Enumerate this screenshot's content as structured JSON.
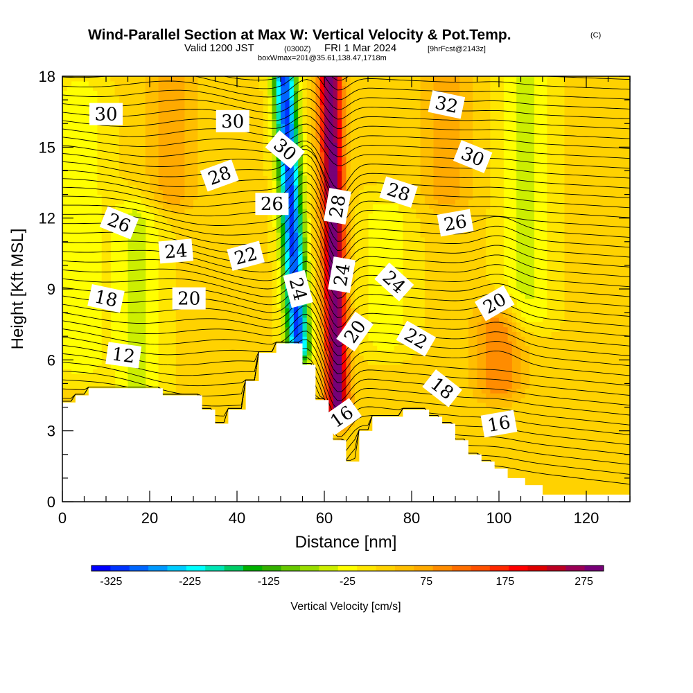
{
  "title": {
    "main": "Wind-Parallel Section at Max W: Vertical Velocity & Pot.Temp.",
    "copyright": "(C)",
    "valid_prefix": "Valid 1200 JST",
    "valid_utc": "(0300Z)",
    "valid_date": "FRI 1 Mar 2024",
    "forecast": "[9hrFcst@2143z]",
    "boxwmax": "boxWmax=201@35.61,138.47,1718m"
  },
  "chart_data": {
    "type": "heatmap",
    "xlabel": "Distance [nm]",
    "ylabel": "Height [Kft MSL]",
    "xlim": [
      0,
      130
    ],
    "ylim": [
      0,
      18
    ],
    "x_ticks": [
      "0",
      "20",
      "40",
      "60",
      "80",
      "100",
      "120"
    ],
    "y_ticks": [
      "0",
      "3",
      "6",
      "9",
      "12",
      "15",
      "18"
    ],
    "field": "Vertical Velocity",
    "colorbar": {
      "label": "Vertical Velocity [cm/s]",
      "ticks": [
        "-325",
        "-225",
        "-125",
        "-25",
        "75",
        "175",
        "275"
      ],
      "min": -350,
      "max": 300,
      "colors": [
        "#0000ff",
        "#0033ff",
        "#0066ff",
        "#0099ff",
        "#00ccff",
        "#00ffff",
        "#00e5b4",
        "#00cc66",
        "#00b000",
        "#33b000",
        "#66c800",
        "#99dd00",
        "#ccee00",
        "#ffff00",
        "#ffe600",
        "#ffd200",
        "#ffbe00",
        "#ffaa00",
        "#ff8c00",
        "#ff6e00",
        "#ff5000",
        "#ff2800",
        "#ff0000",
        "#dd0000",
        "#bb0022",
        "#990055",
        "#770077"
      ]
    },
    "terrain": [
      [
        0,
        4.2
      ],
      [
        3,
        4.2
      ],
      [
        3,
        4.5
      ],
      [
        6,
        4.5
      ],
      [
        6,
        4.8
      ],
      [
        23,
        4.8
      ],
      [
        23,
        4.5
      ],
      [
        32,
        4.5
      ],
      [
        32,
        3.9
      ],
      [
        35,
        3.9
      ],
      [
        35,
        3.3
      ],
      [
        38,
        3.3
      ],
      [
        38,
        3.9
      ],
      [
        42,
        3.9
      ],
      [
        42,
        5.1
      ],
      [
        45,
        5.1
      ],
      [
        45,
        6.3
      ],
      [
        49,
        6.3
      ],
      [
        49,
        6.7
      ],
      [
        55,
        6.7
      ],
      [
        55,
        5.8
      ],
      [
        58,
        5.8
      ],
      [
        58,
        4.3
      ],
      [
        61,
        4.3
      ],
      [
        61,
        3.3
      ],
      [
        62,
        3.3
      ],
      [
        62,
        2.6
      ],
      [
        65,
        2.6
      ],
      [
        65,
        1.7
      ],
      [
        68,
        1.7
      ],
      [
        68,
        3.0
      ],
      [
        71,
        3.0
      ],
      [
        71,
        3.6
      ],
      [
        78,
        3.6
      ],
      [
        78,
        3.9
      ],
      [
        84,
        3.9
      ],
      [
        84,
        3.6
      ],
      [
        87,
        3.6
      ],
      [
        87,
        3.3
      ],
      [
        90,
        3.3
      ],
      [
        90,
        2.6
      ],
      [
        93,
        2.6
      ],
      [
        93,
        2.0
      ],
      [
        96,
        2.0
      ],
      [
        96,
        1.7
      ],
      [
        99,
        1.7
      ],
      [
        99,
        1.4
      ],
      [
        102,
        1.4
      ],
      [
        102,
        1.0
      ],
      [
        106,
        1.0
      ],
      [
        106,
        0.7
      ],
      [
        110,
        0.7
      ],
      [
        110,
        0.3
      ],
      [
        130,
        0.3
      ]
    ],
    "w_features": [
      {
        "type": "downdraft",
        "x": 54,
        "y_bottom": 6.6,
        "y_top": 18,
        "peak": -325
      },
      {
        "type": "updraft",
        "x": 63,
        "y_bottom": 4.0,
        "y_top": 18,
        "peak": 290
      },
      {
        "type": "weak_updraft",
        "x": 100,
        "y_bottom": 5.0,
        "y_top": 7.5,
        "peak": 90
      },
      {
        "type": "weak_updraft",
        "x": 88,
        "y_bottom": 13,
        "y_top": 18,
        "peak": 60
      },
      {
        "type": "weak_updraft",
        "x": 25,
        "y_bottom": 13,
        "y_top": 18,
        "peak": 60
      },
      {
        "type": "weak_downdraft",
        "x": 17,
        "y_bottom": 5,
        "y_top": 12,
        "peak": -60
      },
      {
        "type": "weak_downdraft",
        "x": 4,
        "y_bottom": 6,
        "y_top": 17,
        "peak": -50
      },
      {
        "type": "weak_downdraft",
        "x": 106,
        "y_bottom": 8,
        "y_top": 18,
        "peak": -60
      },
      {
        "type": "weak_downdraft",
        "x": 74,
        "y_bottom": 7,
        "y_top": 12,
        "peak": -45
      }
    ],
    "theta_contours": {
      "spacing_c": 1,
      "labels": [
        {
          "text": "30",
          "x": 10,
          "y": 16.4,
          "rot": 0
        },
        {
          "text": "30",
          "x": 39,
          "y": 16.1,
          "rot": 0
        },
        {
          "text": "30",
          "x": 51,
          "y": 14.9,
          "rot": 40
        },
        {
          "text": "32",
          "x": 88,
          "y": 16.8,
          "rot": 12
        },
        {
          "text": "30",
          "x": 94,
          "y": 14.6,
          "rot": 22
        },
        {
          "text": "28",
          "x": 36,
          "y": 13.8,
          "rot": -20
        },
        {
          "text": "26",
          "x": 48,
          "y": 12.6,
          "rot": 0
        },
        {
          "text": "28",
          "x": 63,
          "y": 12.5,
          "rot": -80
        },
        {
          "text": "28",
          "x": 77,
          "y": 13.1,
          "rot": 18
        },
        {
          "text": "26",
          "x": 13,
          "y": 11.8,
          "rot": 22
        },
        {
          "text": "26",
          "x": 90,
          "y": 11.8,
          "rot": -10
        },
        {
          "text": "24",
          "x": 26,
          "y": 10.6,
          "rot": -5
        },
        {
          "text": "22",
          "x": 42,
          "y": 10.4,
          "rot": -15
        },
        {
          "text": "24",
          "x": 64,
          "y": 9.6,
          "rot": -80
        },
        {
          "text": "24",
          "x": 76,
          "y": 9.3,
          "rot": 42
        },
        {
          "text": "24",
          "x": 54,
          "y": 9.0,
          "rot": 75
        },
        {
          "text": "18",
          "x": 10,
          "y": 8.6,
          "rot": 12
        },
        {
          "text": "20",
          "x": 29,
          "y": 8.6,
          "rot": 0
        },
        {
          "text": "20",
          "x": 99,
          "y": 8.4,
          "rot": -30
        },
        {
          "text": "20",
          "x": 67,
          "y": 7.2,
          "rot": -55
        },
        {
          "text": "22",
          "x": 81,
          "y": 6.9,
          "rot": 30
        },
        {
          "text": "12",
          "x": 14,
          "y": 6.2,
          "rot": 8
        },
        {
          "text": "18",
          "x": 87,
          "y": 4.8,
          "rot": 38
        },
        {
          "text": "16",
          "x": 64,
          "y": 3.6,
          "rot": -35
        },
        {
          "text": "16",
          "x": 100,
          "y": 3.3,
          "rot": -10
        }
      ]
    }
  }
}
